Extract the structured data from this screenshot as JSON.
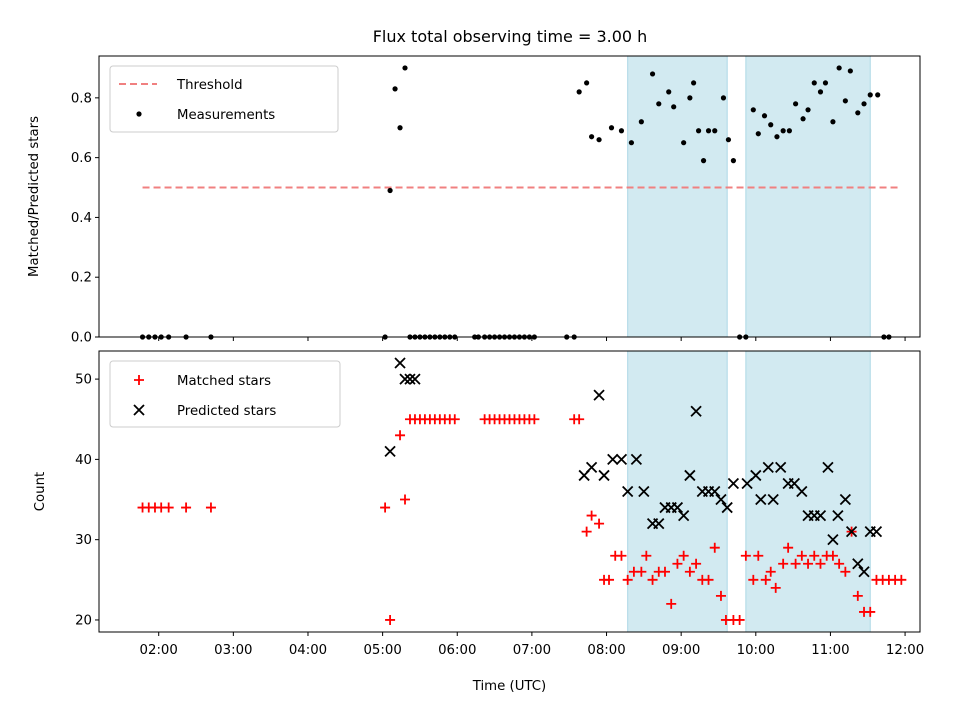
{
  "title": "Flux total observing time = 3.00 h",
  "colors": {
    "threshold": "#f08080",
    "measurement": "#000000",
    "matched": "#ff0000",
    "predicted": "#000000",
    "shade": "#add8e6"
  },
  "chart_data": [
    {
      "type": "scatter",
      "xlabel": "",
      "ylabel": "Matched/Predicted stars",
      "ylim": [
        0,
        0.94
      ],
      "xlim": [
        "01:12",
        "12:12"
      ],
      "yticks": [
        "0.0",
        "0.2",
        "0.4",
        "0.6",
        "0.8"
      ],
      "legend": "top-left",
      "shaded_intervals": [
        [
          "08:17",
          "09:37"
        ],
        [
          "09:52",
          "11:32"
        ]
      ],
      "threshold": {
        "name": "Threshold",
        "value": 0.5,
        "x_range": [
          "01:47",
          "11:57"
        ]
      },
      "series": [
        {
          "name": "Measurements",
          "x": [
            "01:47",
            "01:52",
            "01:57",
            "02:02",
            "02:08",
            "02:22",
            "02:42",
            "05:02",
            "05:06",
            "05:10",
            "05:14",
            "05:18",
            "05:22",
            "05:26",
            "05:30",
            "05:34",
            "05:38",
            "05:42",
            "05:46",
            "05:50",
            "05:54",
            "05:58",
            "06:14",
            "06:17",
            "06:22",
            "06:26",
            "06:30",
            "06:34",
            "06:38",
            "06:42",
            "06:46",
            "06:50",
            "06:54",
            "06:58",
            "07:02",
            "07:28",
            "07:34",
            "07:38",
            "07:44",
            "07:48",
            "07:54",
            "08:04",
            "08:12",
            "08:20",
            "08:28",
            "08:37",
            "08:42",
            "08:50",
            "08:54",
            "09:02",
            "09:07",
            "09:10",
            "09:14",
            "09:18",
            "09:22",
            "09:27",
            "09:34",
            "09:38",
            "09:42",
            "09:47",
            "09:52",
            "09:58",
            "10:02",
            "10:07",
            "10:12",
            "10:17",
            "10:22",
            "10:27",
            "10:32",
            "10:38",
            "10:42",
            "10:47",
            "10:52",
            "10:56",
            "11:02",
            "11:07",
            "11:12",
            "11:16",
            "11:22",
            "11:27",
            "11:32",
            "11:38",
            "11:43",
            "11:47"
          ],
          "y": [
            0,
            0,
            0,
            0,
            0,
            0,
            0,
            0,
            0.49,
            0.83,
            0.7,
            0.9,
            0,
            0,
            0,
            0,
            0,
            0,
            0,
            0,
            0,
            0,
            0,
            0,
            0,
            0,
            0,
            0,
            0,
            0,
            0,
            0,
            0,
            0,
            0,
            0,
            0,
            0.82,
            0.85,
            0.67,
            0.66,
            0.7,
            0.69,
            0.65,
            0.72,
            0.88,
            0.78,
            0.82,
            0.77,
            0.65,
            0.8,
            0.85,
            0.69,
            0.59,
            0.69,
            0.69,
            0.8,
            0.66,
            0.59,
            0,
            0,
            0.76,
            0.68,
            0.74,
            0.71,
            0.67,
            0.69,
            0.69,
            0.78,
            0.73,
            0.76,
            0.85,
            0.82,
            0.85,
            0.72,
            0.9,
            0.79,
            0.89,
            0.75,
            0.78,
            0.81,
            0.81,
            0,
            0
          ]
        }
      ]
    },
    {
      "type": "scatter",
      "xlabel": "Time (UTC)",
      "ylabel": "Count",
      "ylim": [
        18.5,
        53.5
      ],
      "xlim": [
        "01:12",
        "12:12"
      ],
      "yticks": [
        "20",
        "30",
        "40",
        "50"
      ],
      "xticks": [
        "02:00",
        "03:00",
        "04:00",
        "05:00",
        "06:00",
        "07:00",
        "08:00",
        "09:00",
        "10:00",
        "11:00",
        "12:00"
      ],
      "legend": "top-left",
      "shaded_intervals": [
        [
          "08:17",
          "09:37"
        ],
        [
          "09:52",
          "11:32"
        ]
      ],
      "series": [
        {
          "name": "Matched stars",
          "x": [
            "01:47",
            "01:52",
            "01:57",
            "02:02",
            "02:08",
            "02:22",
            "02:42",
            "05:02",
            "05:06",
            "05:14",
            "05:18",
            "05:22",
            "05:26",
            "05:30",
            "05:34",
            "05:38",
            "05:42",
            "05:46",
            "05:50",
            "05:54",
            "05:58",
            "06:22",
            "06:26",
            "06:30",
            "06:34",
            "06:38",
            "06:42",
            "06:46",
            "06:50",
            "06:54",
            "06:58",
            "07:02",
            "07:34",
            "07:38",
            "07:44",
            "07:48",
            "07:54",
            "07:58",
            "08:02",
            "08:07",
            "08:12",
            "08:17",
            "08:22",
            "08:28",
            "08:32",
            "08:37",
            "08:42",
            "08:47",
            "08:52",
            "08:57",
            "09:02",
            "09:07",
            "09:12",
            "09:17",
            "09:22",
            "09:27",
            "09:32",
            "09:36",
            "09:42",
            "09:47",
            "09:52",
            "09:58",
            "10:02",
            "10:08",
            "10:12",
            "10:16",
            "10:22",
            "10:26",
            "10:32",
            "10:37",
            "10:42",
            "10:47",
            "10:52",
            "10:57",
            "11:02",
            "11:07",
            "11:12",
            "11:17",
            "11:22",
            "11:27",
            "11:32",
            "11:37",
            "11:42",
            "11:47",
            "11:52",
            "11:57"
          ],
          "y": [
            34,
            34,
            34,
            34,
            34,
            34,
            34,
            34,
            20,
            43,
            35,
            45,
            45,
            45,
            45,
            45,
            45,
            45,
            45,
            45,
            45,
            45,
            45,
            45,
            45,
            45,
            45,
            45,
            45,
            45,
            45,
            45,
            45,
            45,
            31,
            33,
            32,
            25,
            25,
            28,
            28,
            25,
            26,
            26,
            28,
            25,
            26,
            26,
            22,
            27,
            28,
            26,
            27,
            25,
            25,
            29,
            23,
            20,
            20,
            20,
            28,
            25,
            28,
            25,
            26,
            24,
            27,
            29,
            27,
            28,
            27,
            28,
            27,
            28,
            28,
            27,
            26,
            31,
            23,
            21,
            21,
            25,
            25,
            25,
            25,
            25
          ]
        },
        {
          "name": "Predicted stars",
          "x": [
            "05:06",
            "05:14",
            "05:18",
            "05:22",
            "05:26",
            "07:42",
            "07:48",
            "07:54",
            "07:58",
            "08:05",
            "08:12",
            "08:17",
            "08:24",
            "08:30",
            "08:37",
            "08:42",
            "08:47",
            "08:52",
            "08:57",
            "09:02",
            "09:07",
            "09:12",
            "09:17",
            "09:22",
            "09:27",
            "09:32",
            "09:37",
            "09:42",
            "09:53",
            "10:00",
            "10:04",
            "10:10",
            "10:14",
            "10:20",
            "10:26",
            "10:31",
            "10:37",
            "10:42",
            "10:47",
            "10:52",
            "10:58",
            "11:02",
            "11:06",
            "11:12",
            "11:17",
            "11:22",
            "11:27",
            "11:32",
            "11:37"
          ],
          "y": [
            41,
            52,
            50,
            50,
            50,
            38,
            39,
            48,
            38,
            40,
            40,
            36,
            40,
            36,
            32,
            32,
            34,
            34,
            34,
            33,
            38,
            46,
            36,
            36,
            36,
            35,
            34,
            37,
            37,
            38,
            35,
            39,
            35,
            39,
            37,
            37,
            36,
            33,
            33,
            33,
            39,
            30,
            33,
            35,
            31,
            27,
            26,
            31,
            31
          ]
        }
      ]
    }
  ]
}
